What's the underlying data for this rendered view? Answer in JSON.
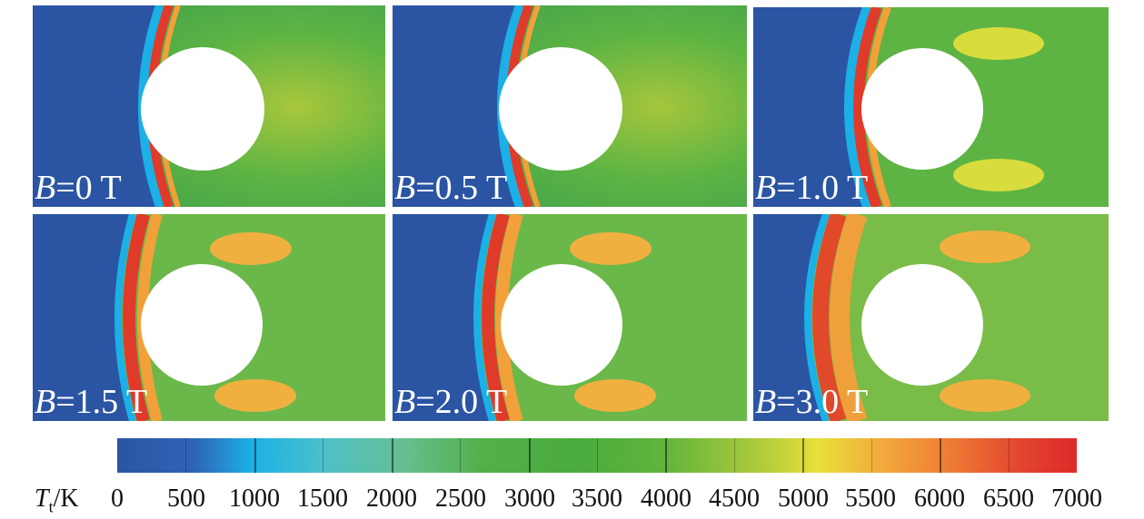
{
  "panels": [
    {
      "var": "B",
      "value": "=0 T"
    },
    {
      "var": "B",
      "value": "=0.5 T"
    },
    {
      "var": "B",
      "value": "=1.0 T"
    },
    {
      "var": "B",
      "value": "=1.5 T"
    },
    {
      "var": "B",
      "value": "=2.0 T"
    },
    {
      "var": "B",
      "value": "=3.0 T"
    }
  ],
  "colorbar": {
    "variable": "T",
    "subscript": "t",
    "unit": "/K",
    "ticks": [
      "0",
      "500",
      "1000",
      "1500",
      "2000",
      "2500",
      "3000",
      "3500",
      "4000",
      "4500",
      "5000",
      "5500",
      "6000",
      "6500",
      "7000"
    ],
    "min": 0,
    "max": 7000
  },
  "colors": {
    "freestream": "#2b55a3",
    "post_shock": "#4aa84a",
    "shock_hot": "#e0322a",
    "wake_warm": "#f0a83a",
    "body": "#ffffff"
  }
}
